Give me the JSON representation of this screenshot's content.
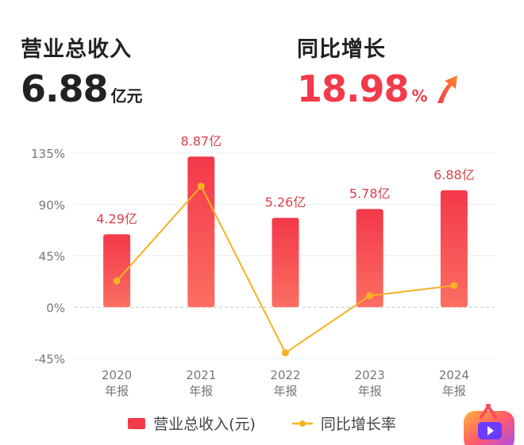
{
  "kpis": {
    "revenue": {
      "label": "营业总收入",
      "value": "6.88",
      "unit": "亿元"
    },
    "growth": {
      "label": "同比增长",
      "value": "18.98",
      "unit": "%",
      "icon": "up-arrow-icon"
    }
  },
  "colors": {
    "bar": "#f23a4a",
    "line": "#f5b223",
    "value_label": "#d9424f",
    "axis_text": "#777777"
  },
  "legend": {
    "bar_label": "营业总收入(元)",
    "line_label": "同比增长率",
    "position": "bottom"
  },
  "chart_data": {
    "type": "bar+line",
    "categories": [
      "2020\n年报",
      "2021\n年报",
      "2022\n年报",
      "2023\n年报",
      "2024\n年报"
    ],
    "category_lines": [
      [
        "2020",
        "年报"
      ],
      [
        "2021",
        "年报"
      ],
      [
        "2022",
        "年报"
      ],
      [
        "2023",
        "年报"
      ],
      [
        "2024",
        "年报"
      ]
    ],
    "series": [
      {
        "name": "营业总收入(元)",
        "kind": "bar",
        "values": [
          4.29,
          8.87,
          5.26,
          5.78,
          6.88
        ],
        "labels": [
          "4.29亿",
          "8.87亿",
          "5.26亿",
          "5.78亿",
          "6.88亿"
        ]
      },
      {
        "name": "同比增长率",
        "kind": "line",
        "values": [
          23,
          106,
          -40,
          10,
          18.98
        ]
      }
    ],
    "y_ticks": [
      -45,
      0,
      45,
      90,
      135
    ],
    "y_tick_labels": [
      "-45%",
      "0%",
      "45%",
      "90%",
      "135%"
    ],
    "ylim": [
      -45,
      135
    ],
    "grid": true
  }
}
